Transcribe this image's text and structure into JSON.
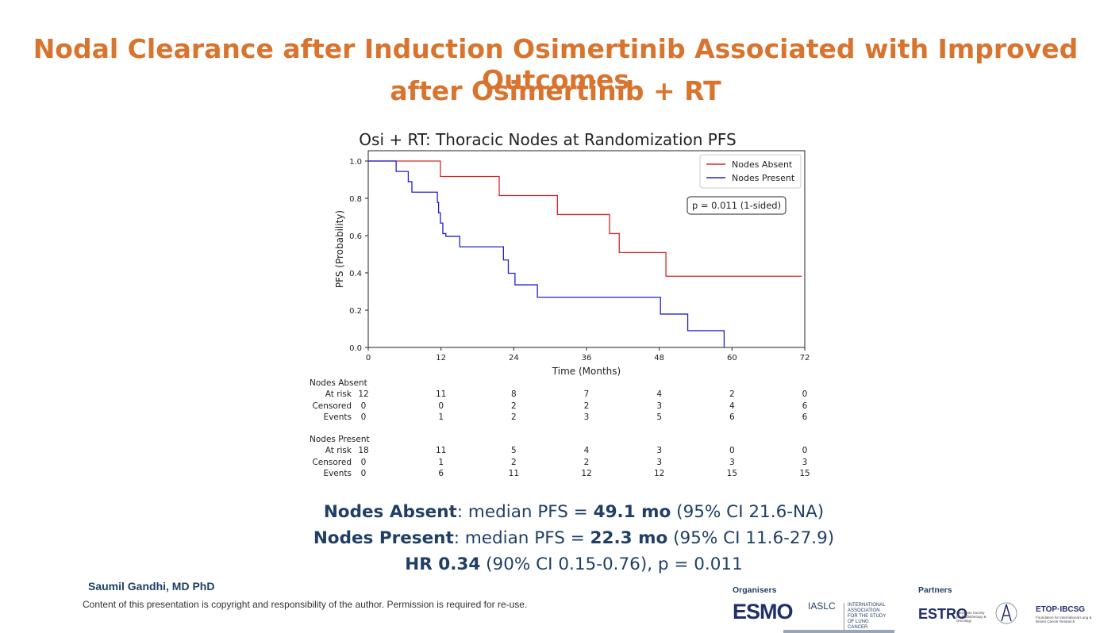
{
  "slide": {
    "title_line1": "Nodal Clearance after Induction Osimertinib Associated with Improved Outcomes",
    "title_line2": "after Osimertinib + RT"
  },
  "chart_data": {
    "type": "line",
    "title": "Osi + RT: Thoracic Nodes at Randomization PFS",
    "xlabel": "Time (Months)",
    "ylabel": "PFS (Probability)",
    "xlim": [
      0,
      72
    ],
    "ylim": [
      0,
      1.0
    ],
    "xticks": [
      "0",
      "12",
      "24",
      "36",
      "48",
      "60",
      "72"
    ],
    "yticks": [
      "0.0",
      "0.2",
      "0.4",
      "0.6",
      "0.8",
      "1.0"
    ],
    "annotation": "p = 0.011 (1-sided)",
    "legend": [
      "Nodes Absent",
      "Nodes Present"
    ],
    "series": [
      {
        "name": "Nodes Absent",
        "color": "#d62728",
        "x": [
          0,
          11.9,
          21.6,
          31.2,
          39.8,
          41.4,
          49.1,
          71.5
        ],
        "y": [
          1.0,
          0.917,
          0.815,
          0.713,
          0.611,
          0.509,
          0.382,
          0.382
        ]
      },
      {
        "name": "Nodes Present",
        "color": "#1f1fd6",
        "x": [
          0,
          4.6,
          6.6,
          7.2,
          11.4,
          11.6,
          11.9,
          12.3,
          12.8,
          15.1,
          22.3,
          23.1,
          24.2,
          27.9,
          48.2,
          52.7,
          58.7
        ],
        "y": [
          1.0,
          0.944,
          0.889,
          0.833,
          0.778,
          0.722,
          0.667,
          0.611,
          0.596,
          0.54,
          0.469,
          0.398,
          0.336,
          0.269,
          0.179,
          0.09,
          0.0
        ]
      }
    ]
  },
  "risk_table": {
    "groups": [
      {
        "name": "Nodes Absent",
        "rows": [
          {
            "label": "At risk",
            "values": [
              "12",
              "11",
              "8",
              "7",
              "4",
              "2",
              "0"
            ]
          },
          {
            "label": "Censored",
            "values": [
              "0",
              "0",
              "2",
              "2",
              "3",
              "4",
              "6"
            ]
          },
          {
            "label": "Events",
            "values": [
              "0",
              "1",
              "2",
              "3",
              "5",
              "6",
              "6"
            ]
          }
        ]
      },
      {
        "name": "Nodes Present",
        "rows": [
          {
            "label": "At risk",
            "values": [
              "18",
              "11",
              "5",
              "4",
              "3",
              "0",
              "0"
            ]
          },
          {
            "label": "Censored",
            "values": [
              "0",
              "1",
              "2",
              "2",
              "3",
              "3",
              "3"
            ]
          },
          {
            "label": "Events",
            "values": [
              "0",
              "6",
              "11",
              "12",
              "12",
              "15",
              "15"
            ]
          }
        ]
      }
    ]
  },
  "summary": {
    "line1": {
      "group": "Nodes Absent",
      "mid": ": median PFS = ",
      "value": "49.1 mo",
      "ci": " (95% CI 21.6-NA)"
    },
    "line2": {
      "group": "Nodes Present",
      "mid": ": median PFS = ",
      "value": "22.3 mo",
      "ci": " (95% CI 11.6-27.9)"
    },
    "line3": {
      "hr": "HR 0.34",
      "rest": " (90% CI 0.15-0.76), p = 0.011"
    }
  },
  "footer": {
    "author": "Saumil Gandhi, MD PhD",
    "copyright": "Content of this presentation is copyright and responsibility of the author. Permission is required for re-use.",
    "organisers_label": "Organisers",
    "partners_label": "Partners",
    "logos": {
      "esmo": "ESMO",
      "iaslc": "IASLC",
      "iaslc_sub": "INTERNATIONAL ASSOCIATION FOR THE STUDY OF LUNG CANCER",
      "estro": "ESTRO",
      "estro_sub": "European Society for Radiotherapy & Oncology",
      "etop": "ETOP·IBCSG",
      "etop_sub": "Foundation for International Lung & Breast Cancer Research"
    }
  }
}
